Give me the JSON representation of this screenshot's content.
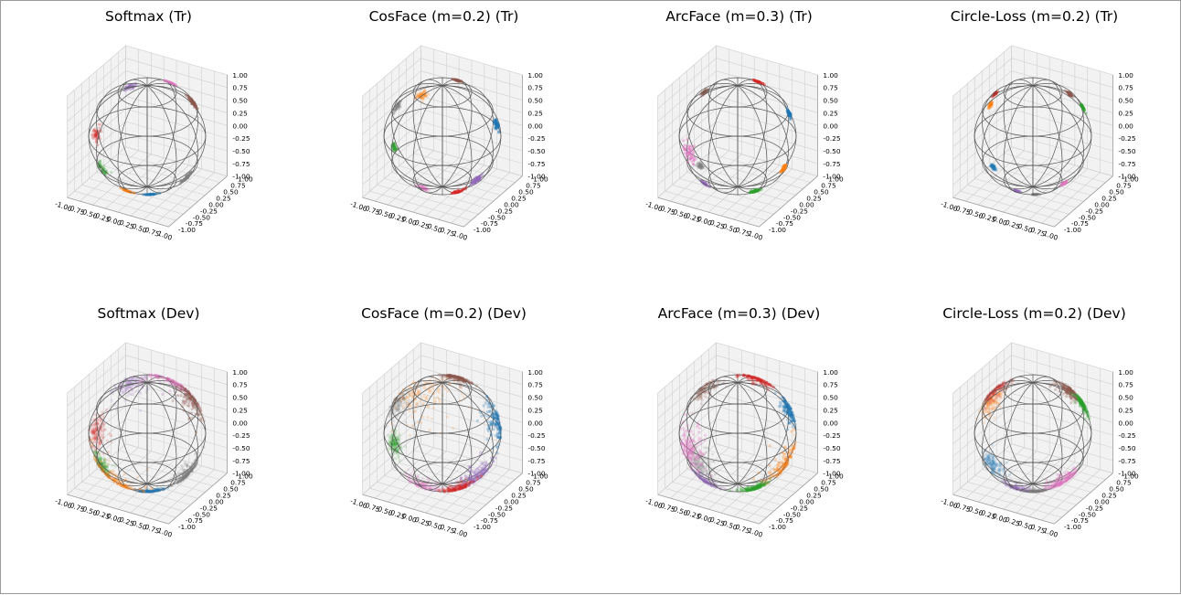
{
  "figure": {
    "background": "#ffffff",
    "sphere_color": "#555555",
    "pane_color": "#f2f2f2",
    "grid_color": "#d0d0d0"
  },
  "tick_labels": [
    "-1.00",
    "-0.75",
    "-0.50",
    "-0.25",
    "0.00",
    "0.25",
    "0.50",
    "0.75",
    "1.00"
  ],
  "z_tick_labels": [
    "1.00",
    "0.75",
    "0.50",
    "0.25",
    "0.00",
    "-0.25",
    "-0.50",
    "-0.75",
    "-1.00"
  ],
  "chart_data": [
    {
      "type": "scatter",
      "title": "Softmax (Tr)",
      "split": "train",
      "xlim": [
        -1,
        1
      ],
      "ylim": [
        -1,
        1
      ],
      "zlim": [
        -1,
        1
      ],
      "grid": true,
      "clusters": [
        {
          "color": "#9467bd",
          "x": -0.65,
          "y": 0.55,
          "z": 0.5,
          "spread": 0.06
        },
        {
          "color": "#e377c2",
          "x": 0.1,
          "y": 0.55,
          "z": 0.7,
          "spread": 0.06
        },
        {
          "color": "#8c564b",
          "x": 0.55,
          "y": 0.4,
          "z": 0.55,
          "spread": 0.06
        },
        {
          "color": "#d62728",
          "x": -0.85,
          "y": -0.05,
          "z": -0.2,
          "spread": 0.07
        },
        {
          "color": "#2ca02c",
          "x": -0.5,
          "y": -0.3,
          "z": -0.5,
          "spread": 0.07
        },
        {
          "color": "#1f77b4",
          "x": 0.25,
          "y": -0.35,
          "z": -0.75,
          "spread": 0.06
        },
        {
          "color": "#7f7f7f",
          "x": 0.75,
          "y": -0.1,
          "z": -0.45,
          "spread": 0.06
        },
        {
          "color": "#ff7f0e",
          "x": -0.1,
          "y": -0.6,
          "z": -0.95,
          "spread": 0.05
        }
      ]
    },
    {
      "type": "scatter",
      "title": "CosFace (m=0.2) (Tr)",
      "split": "train",
      "xlim": [
        -1,
        1
      ],
      "ylim": [
        -1,
        1
      ],
      "zlim": [
        -1,
        1
      ],
      "grid": true,
      "clusters": [
        {
          "color": "#8c564b",
          "x": 0.05,
          "y": 0.45,
          "z": 0.95,
          "spread": 0.04
        },
        {
          "color": "#7f7f7f",
          "x": -0.8,
          "y": 0.1,
          "z": 0.2,
          "spread": 0.05
        },
        {
          "color": "#ff7f0e",
          "x": -0.25,
          "y": 0.2,
          "z": 0.1,
          "spread": 0.06
        },
        {
          "color": "#1f77b4",
          "x": 0.8,
          "y": 0.3,
          "z": 0.3,
          "spread": 0.05
        },
        {
          "color": "#9467bd",
          "x": 0.6,
          "y": -0.2,
          "z": -0.35,
          "spread": 0.06
        },
        {
          "color": "#2ca02c",
          "x": -0.95,
          "y": -0.1,
          "z": -0.45,
          "spread": 0.04
        },
        {
          "color": "#e377c2",
          "x": -0.2,
          "y": -0.3,
          "z": -0.9,
          "spread": 0.05
        },
        {
          "color": "#d62728",
          "x": 0.55,
          "y": -0.4,
          "z": -0.75,
          "spread": 0.05
        }
      ]
    },
    {
      "type": "scatter",
      "title": "ArcFace (m=0.3) (Tr)",
      "split": "train",
      "xlim": [
        -1,
        1
      ],
      "ylim": [
        -1,
        1
      ],
      "zlim": [
        -1,
        1
      ],
      "grid": true,
      "clusters": [
        {
          "color": "#8c564b",
          "x": -0.85,
          "y": 0.3,
          "z": 0.5,
          "spread": 0.04
        },
        {
          "color": "#d62728",
          "x": 0.1,
          "y": 0.5,
          "z": 0.85,
          "spread": 0.05
        },
        {
          "color": "#1f77b4",
          "x": 0.75,
          "y": 0.4,
          "z": 0.45,
          "spread": 0.04
        },
        {
          "color": "#e377c2",
          "x": -0.2,
          "y": -0.4,
          "z": 0.0,
          "spread": 0.1
        },
        {
          "color": "#9467bd",
          "x": -0.2,
          "y": -0.3,
          "z": -0.45,
          "spread": 0.05
        },
        {
          "color": "#ff7f0e",
          "x": 0.95,
          "y": -0.05,
          "z": -0.35,
          "spread": 0.04
        },
        {
          "color": "#7f7f7f",
          "x": -0.7,
          "y": -0.1,
          "z": -0.75,
          "spread": 0.04
        },
        {
          "color": "#2ca02c",
          "x": 0.6,
          "y": -0.4,
          "z": -0.8,
          "spread": 0.05
        }
      ]
    },
    {
      "type": "scatter",
      "title": "Circle-Loss (m=0.2) (Tr)",
      "split": "train",
      "xlim": [
        -1,
        1
      ],
      "ylim": [
        -1,
        1
      ],
      "zlim": [
        -1,
        1
      ],
      "grid": true,
      "clusters": [
        {
          "color": "#ff7f0e",
          "x": -0.95,
          "y": 0.2,
          "z": 0.25,
          "spread": 0.03
        },
        {
          "color": "#d62728",
          "x": -0.5,
          "y": 0.1,
          "z": 0.3,
          "spread": 0.03
        },
        {
          "color": "#8c564b",
          "x": 0.35,
          "y": 0.3,
          "z": 0.55,
          "spread": 0.03
        },
        {
          "color": "#2ca02c",
          "x": 0.6,
          "y": 0.45,
          "z": 0.45,
          "spread": 0.03
        },
        {
          "color": "#e377c2",
          "x": 0.85,
          "y": -0.3,
          "z": -0.65,
          "spread": 0.03
        },
        {
          "color": "#7f7f7f",
          "x": 0.25,
          "y": -0.35,
          "z": -0.85,
          "spread": 0.03
        },
        {
          "color": "#9467bd",
          "x": -0.1,
          "y": -0.4,
          "z": -0.95,
          "spread": 0.03
        },
        {
          "color": "#1f77b4",
          "x": -0.7,
          "y": -0.2,
          "z": -0.75,
          "spread": 0.03
        }
      ]
    },
    {
      "type": "scatter",
      "title": "Softmax (Dev)",
      "split": "dev",
      "xlim": [
        -1,
        1
      ],
      "ylim": [
        -1,
        1
      ],
      "zlim": [
        -1,
        1
      ],
      "grid": true,
      "clusters": [
        {
          "color": "#9467bd",
          "x": -0.65,
          "y": 0.55,
          "z": 0.5,
          "spread": 0.2
        },
        {
          "color": "#e377c2",
          "x": 0.1,
          "y": 0.55,
          "z": 0.7,
          "spread": 0.22
        },
        {
          "color": "#8c564b",
          "x": 0.55,
          "y": 0.4,
          "z": 0.55,
          "spread": 0.18
        },
        {
          "color": "#d62728",
          "x": -0.85,
          "y": -0.05,
          "z": -0.2,
          "spread": 0.15
        },
        {
          "color": "#2ca02c",
          "x": -0.5,
          "y": -0.3,
          "z": -0.5,
          "spread": 0.12
        },
        {
          "color": "#1f77b4",
          "x": 0.25,
          "y": -0.35,
          "z": -0.75,
          "spread": 0.12
        },
        {
          "color": "#7f7f7f",
          "x": 0.75,
          "y": -0.1,
          "z": -0.45,
          "spread": 0.15
        },
        {
          "color": "#ff7f0e",
          "x": -0.3,
          "y": -0.6,
          "z": -0.75,
          "spread": 0.3
        }
      ]
    },
    {
      "type": "scatter",
      "title": "CosFace (m=0.2) (Dev)",
      "split": "dev",
      "xlim": [
        -1,
        1
      ],
      "ylim": [
        -1,
        1
      ],
      "zlim": [
        -1,
        1
      ],
      "grid": true,
      "clusters": [
        {
          "color": "#8c564b",
          "x": 0.05,
          "y": 0.45,
          "z": 0.95,
          "spread": 0.12
        },
        {
          "color": "#7f7f7f",
          "x": -0.8,
          "y": 0.1,
          "z": 0.2,
          "spread": 0.15
        },
        {
          "color": "#ff7f0e",
          "x": -0.25,
          "y": 0.2,
          "z": 0.1,
          "spread": 0.3
        },
        {
          "color": "#1f77b4",
          "x": 0.8,
          "y": 0.3,
          "z": 0.3,
          "spread": 0.2
        },
        {
          "color": "#9467bd",
          "x": 0.6,
          "y": -0.2,
          "z": -0.35,
          "spread": 0.18
        },
        {
          "color": "#2ca02c",
          "x": -0.95,
          "y": -0.1,
          "z": -0.45,
          "spread": 0.1
        },
        {
          "color": "#e377c2",
          "x": -0.2,
          "y": -0.3,
          "z": -0.9,
          "spread": 0.15
        },
        {
          "color": "#d62728",
          "x": 0.55,
          "y": -0.4,
          "z": -0.75,
          "spread": 0.15
        }
      ]
    },
    {
      "type": "scatter",
      "title": "ArcFace (m=0.3) (Dev)",
      "split": "dev",
      "xlim": [
        -1,
        1
      ],
      "ylim": [
        -1,
        1
      ],
      "zlim": [
        -1,
        1
      ],
      "grid": true,
      "clusters": [
        {
          "color": "#8c564b",
          "x": -0.85,
          "y": 0.3,
          "z": 0.5,
          "spread": 0.15
        },
        {
          "color": "#d62728",
          "x": 0.1,
          "y": 0.5,
          "z": 0.85,
          "spread": 0.15
        },
        {
          "color": "#1f77b4",
          "x": 0.75,
          "y": 0.4,
          "z": 0.45,
          "spread": 0.12
        },
        {
          "color": "#e377c2",
          "x": -0.2,
          "y": -0.4,
          "z": 0.0,
          "spread": 0.2
        },
        {
          "color": "#9467bd",
          "x": -0.2,
          "y": -0.3,
          "z": -0.45,
          "spread": 0.15
        },
        {
          "color": "#ff7f0e",
          "x": 0.95,
          "y": -0.05,
          "z": -0.35,
          "spread": 0.25
        },
        {
          "color": "#7f7f7f",
          "x": -0.7,
          "y": -0.1,
          "z": -0.75,
          "spread": 0.15
        },
        {
          "color": "#2ca02c",
          "x": 0.6,
          "y": -0.4,
          "z": -0.8,
          "spread": 0.12
        }
      ]
    },
    {
      "type": "scatter",
      "title": "Circle-Loss (m=0.2) (Dev)",
      "split": "dev",
      "xlim": [
        -1,
        1
      ],
      "ylim": [
        -1,
        1
      ],
      "zlim": [
        -1,
        1
      ],
      "grid": true,
      "clusters": [
        {
          "color": "#ff7f0e",
          "x": -0.95,
          "y": 0.2,
          "z": 0.25,
          "spread": 0.15
        },
        {
          "color": "#d62728",
          "x": -0.5,
          "y": 0.1,
          "z": 0.3,
          "spread": 0.15
        },
        {
          "color": "#8c564b",
          "x": 0.35,
          "y": 0.3,
          "z": 0.55,
          "spread": 0.12
        },
        {
          "color": "#2ca02c",
          "x": 0.6,
          "y": 0.45,
          "z": 0.45,
          "spread": 0.1
        },
        {
          "color": "#e377c2",
          "x": 0.85,
          "y": -0.3,
          "z": -0.65,
          "spread": 0.15
        },
        {
          "color": "#7f7f7f",
          "x": 0.25,
          "y": -0.35,
          "z": -0.85,
          "spread": 0.1
        },
        {
          "color": "#9467bd",
          "x": -0.1,
          "y": -0.4,
          "z": -0.95,
          "spread": 0.12
        },
        {
          "color": "#1f77b4",
          "x": -0.7,
          "y": -0.2,
          "z": -0.75,
          "spread": 0.12
        }
      ]
    }
  ]
}
